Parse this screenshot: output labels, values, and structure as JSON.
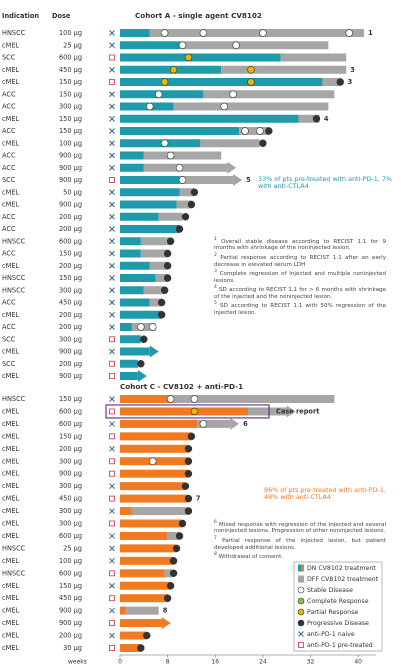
{
  "chart_data": {
    "type": "swimmer",
    "headers": [
      "Indication",
      "Dose"
    ],
    "x_label": "weeks",
    "xlim": [
      0,
      43
    ],
    "xticks": [
      0,
      8,
      16,
      24,
      32,
      40
    ],
    "colors": {
      "dff": "#a6a6a6",
      "sd": "#ffffff",
      "cr": "#8cc63f",
      "pr": "#f0b400",
      "pd": "#333333",
      "naive": "#1d5f8a",
      "pretreated": "#d9455f"
    },
    "legend": [
      {
        "key": "dn",
        "name": "DN CV8102 treatment"
      },
      {
        "key": "dff",
        "name": "DFF CV8102 treatment"
      },
      {
        "key": "sd",
        "name": "Stable Disease"
      },
      {
        "key": "cr",
        "name": "Complete Response"
      },
      {
        "key": "pr",
        "name": "Partial Response"
      },
      {
        "key": "pd",
        "name": "Progressive Disease"
      },
      {
        "key": "naive",
        "name": "anti-PD-1 naive"
      },
      {
        "key": "pretreated",
        "name": "anti-PD-1 pre-treated"
      }
    ],
    "cohorts": [
      {
        "title": "Cohort A - single agent CV8102",
        "color": "#1e9aaa",
        "annotation": "33% of pts pre-treated with anti-PD-1, 7% with anti-CTLA4",
        "footnotes": [
          {
            "mark": "1",
            "text": "Overall stable disease according to RECIST 1.1 for 9 months with shrinkage of the noninjected lesion."
          },
          {
            "mark": "2",
            "text": "Partial response according to RECIST 1.1 after an early decrease in elevated serum LDH"
          },
          {
            "mark": "3",
            "text": "Complete regression of injected and multiple noninjected lesions."
          },
          {
            "mark": "4",
            "text": "SD according to RECIST 1.1 for > 6 months with shrinkage of the injected and the noninjected lesion."
          },
          {
            "mark": "5",
            "text": "SD according to RECIST 1.1 with 50% regression of the injected lesion."
          }
        ],
        "rows": [
          {
            "indication": "HNSCC",
            "dose": "100 µg",
            "pretreated": false,
            "dn": 5,
            "dff": 36,
            "sd": [
              7.5,
              14,
              24,
              38.5
            ],
            "note": "1"
          },
          {
            "indication": "cMEL",
            "dose": "25 µg",
            "pretreated": false,
            "dn": 10,
            "dff": 25,
            "sd": [
              10.5,
              19.5
            ]
          },
          {
            "indication": "SCC",
            "dose": "600 µg",
            "pretreated": true,
            "dn": 27,
            "dff": 11,
            "pr": [
              11.5
            ]
          },
          {
            "indication": "cMEL",
            "dose": "450 µg",
            "pretreated": false,
            "dn": 17,
            "dff": 21,
            "pr": [
              9,
              22
            ],
            "note": "3"
          },
          {
            "indication": "cMEL",
            "dose": "150 µg",
            "pretreated": true,
            "dn": 34,
            "dff": 3,
            "pr": [
              7.5,
              22
            ],
            "pd": [
              37
            ],
            "note": "3"
          },
          {
            "indication": "ACC",
            "dose": "150 µg",
            "pretreated": false,
            "dn": 14,
            "dff": 22,
            "sd": [
              6.5,
              19
            ]
          },
          {
            "indication": "ACC",
            "dose": "300 µg",
            "pretreated": false,
            "dn": 9,
            "dff": 26,
            "sd": [
              5,
              17.5
            ]
          },
          {
            "indication": "cMEL",
            "dose": "150 µg",
            "pretreated": false,
            "dn": 30,
            "dff": 3.5,
            "pd": [
              33
            ],
            "note": "4"
          },
          {
            "indication": "ACC",
            "dose": "150 µg",
            "pretreated": false,
            "dn": 20,
            "dff": 5,
            "sd": [
              21,
              23.5
            ],
            "pd": [
              25
            ]
          },
          {
            "indication": "cMEL",
            "dose": "100 µg",
            "pretreated": false,
            "dn": 13.5,
            "dff": 10,
            "sd": [
              7.5
            ],
            "pd": [
              24
            ]
          },
          {
            "indication": "ACC",
            "dose": "900 µg",
            "pretreated": false,
            "dn": 4,
            "dff": 13,
            "sd": [
              8.5
            ]
          },
          {
            "indication": "ACC",
            "dose": "900 µg",
            "pretreated": false,
            "dn": 4,
            "dff": 14,
            "sd": [
              10
            ],
            "ongoing": true
          },
          {
            "indication": "SCC",
            "dose": "900 µg",
            "pretreated": true,
            "dn": 10,
            "dff": 9,
            "sd": [
              10.5
            ],
            "ongoing": true,
            "note": "5"
          },
          {
            "indication": "cMEL",
            "dose": "50 µg",
            "pretreated": false,
            "dn": 10,
            "dff": 2.5,
            "pd": [
              12.5
            ]
          },
          {
            "indication": "cMEL",
            "dose": "900 µg",
            "pretreated": false,
            "dn": 9.5,
            "dff": 2.5,
            "pd": [
              12
            ]
          },
          {
            "indication": "ACC",
            "dose": "200 µg",
            "pretreated": false,
            "dn": 6.5,
            "dff": 4,
            "pd": [
              11
            ]
          },
          {
            "indication": "ACC",
            "dose": "200 µg",
            "pretreated": false,
            "dn": 10,
            "pd": [
              10
            ]
          },
          {
            "indication": "HNSCC",
            "dose": "600 µg",
            "pretreated": false,
            "dn": 3.5,
            "dff": 5,
            "pd": [
              8.5
            ]
          },
          {
            "indication": "ACC",
            "dose": "150 µg",
            "pretreated": false,
            "dn": 3.5,
            "dff": 4.5,
            "pd": [
              8
            ]
          },
          {
            "indication": "cMEL",
            "dose": "200 µg",
            "pretreated": false,
            "dn": 5,
            "dff": 3,
            "pd": [
              8
            ]
          },
          {
            "indication": "HNSCC",
            "dose": "150 µg",
            "pretreated": false,
            "dn": 6,
            "dff": 2,
            "pd": [
              8
            ]
          },
          {
            "indication": "HNSCC",
            "dose": "300 µg",
            "pretreated": false,
            "dn": 4,
            "dff": 3.5,
            "pd": [
              7.5
            ]
          },
          {
            "indication": "ACC",
            "dose": "450 µg",
            "pretreated": false,
            "dn": 5,
            "dff": 2,
            "pd": [
              7
            ]
          },
          {
            "indication": "cMEL",
            "dose": "200 µg",
            "pretreated": false,
            "dn": 7,
            "pd": [
              7
            ]
          },
          {
            "indication": "ACC",
            "dose": "200 µg",
            "pretreated": false,
            "dn": 2,
            "dff": 4,
            "sd": [
              3.5,
              5.5
            ]
          },
          {
            "indication": "SCC",
            "dose": "300 µg",
            "pretreated": true,
            "dn": 3.5,
            "pd": [
              4
            ]
          },
          {
            "indication": "cMEL",
            "dose": "900 µg",
            "pretreated": false,
            "dn": 5,
            "ongoing": true
          },
          {
            "indication": "SCC",
            "dose": "200 µg",
            "pretreated": true,
            "dn": 3,
            "pd": [
              3.5
            ]
          },
          {
            "indication": "cMEL",
            "dose": "900 µg",
            "pretreated": true,
            "dn": 3,
            "ongoing": true
          }
        ]
      },
      {
        "title": "Cohort C - CV8102 + anti-PD-1",
        "color": "#f07a22",
        "annotation": "86% of pts pre-treated with anti-PD-1, 48% with anti-CTLA4",
        "footnotes": [
          {
            "mark": "6",
            "text": "Mixed response with regression of the injected and several noninjected lesions. Progression of other noninjected lesions."
          },
          {
            "mark": "7",
            "text": "Partial response of the injected lesion, but patient developed additional lesions."
          },
          {
            "mark": "8",
            "text": "Withdrawal of consent."
          }
        ],
        "rows": [
          {
            "indication": "HNSCC",
            "dose": "150 µg",
            "pretreated": false,
            "dn": 9,
            "dff": 27,
            "sd": [
              8.5,
              12.5
            ]
          },
          {
            "indication": "cMEL",
            "dose": "600 µg",
            "pretreated": true,
            "dn": 21.5,
            "dff": 6.5,
            "pr": [
              12.5
            ],
            "ongoing": true,
            "callout": "Case report"
          },
          {
            "indication": "cMEL",
            "dose": "600 µg",
            "pretreated": false,
            "dn": 13,
            "dff": 5.5,
            "sd": [
              14
            ],
            "ongoing": true,
            "note": "6"
          },
          {
            "indication": "cMEL",
            "dose": "150 µg",
            "pretreated": true,
            "dn": 12,
            "pd": [
              12
            ]
          },
          {
            "indication": "cMEL",
            "dose": "200 µg",
            "pretreated": false,
            "dn": 11.5,
            "pd": [
              11.5
            ]
          },
          {
            "indication": "cMEL",
            "dose": "300 µg",
            "pretreated": true,
            "dn": 11.5,
            "sd": [
              5.5
            ],
            "pd": [
              11.5
            ]
          },
          {
            "indication": "cMEL",
            "dose": "900 µg",
            "pretreated": true,
            "dn": 11.5,
            "pd": [
              11.5
            ]
          },
          {
            "indication": "cMEL",
            "dose": "300 µg",
            "pretreated": false,
            "dn": 11,
            "pd": [
              11
            ]
          },
          {
            "indication": "cMEL",
            "dose": "450 µg",
            "pretreated": true,
            "dn": 11.5,
            "pd": [
              11.5
            ],
            "note": "7"
          },
          {
            "indication": "cMEL",
            "dose": "300 µg",
            "pretreated": false,
            "dn": 2,
            "dff": 9.5,
            "pd": [
              11.5
            ]
          },
          {
            "indication": "cMEL",
            "dose": "300 µg",
            "pretreated": true,
            "dn": 10.5,
            "pd": [
              10.5
            ]
          },
          {
            "indication": "cMEL",
            "dose": "600 µg",
            "pretreated": false,
            "dn": 8,
            "dff": 2,
            "pd": [
              10
            ]
          },
          {
            "indication": "HNSCC",
            "dose": "25 µg",
            "pretreated": false,
            "dn": 9.5,
            "pd": [
              9.5
            ]
          },
          {
            "indication": "cMEL",
            "dose": "100 µg",
            "pretreated": false,
            "dn": 9,
            "pd": [
              9
            ]
          },
          {
            "indication": "HNSCC",
            "dose": "600 µg",
            "pretreated": true,
            "dn": 7.5,
            "dff": 1.5,
            "pd": [
              9
            ]
          },
          {
            "indication": "cMEL",
            "dose": "150 µg",
            "pretreated": false,
            "dn": 8.5,
            "pd": [
              8.5
            ]
          },
          {
            "indication": "cMEL",
            "dose": "450 µg",
            "pretreated": true,
            "dn": 8,
            "pd": [
              8
            ]
          },
          {
            "indication": "cMEL",
            "dose": "900 µg",
            "pretreated": false,
            "dn": 1,
            "dff": 5.5,
            "note": "8"
          },
          {
            "indication": "cMEL",
            "dose": "900 µg",
            "pretreated": true,
            "dn": 7,
            "ongoing": true
          },
          {
            "indication": "cMEL",
            "dose": "200 µg",
            "pretreated": false,
            "dn": 4.5,
            "pd": [
              4.5
            ]
          },
          {
            "indication": "cMEL",
            "dose": "30 µg",
            "pretreated": true,
            "dn": 3.5,
            "pd": [
              3.5
            ]
          }
        ]
      }
    ]
  }
}
